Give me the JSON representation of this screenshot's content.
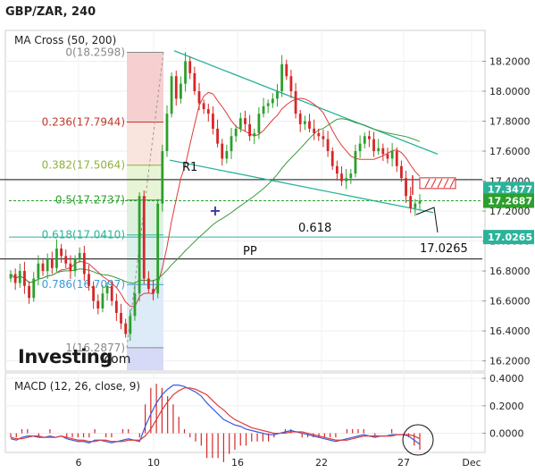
{
  "header": {
    "title": "GBP/ZAR, 240"
  },
  "indicators": {
    "ma_label": "MA Cross (50, 200)",
    "macd_label": "MACD (12, 26, close, 9)"
  },
  "watermark": {
    "brand": "Investing",
    "suffix": ".com"
  },
  "annotations": {
    "r1": "R1",
    "pp": "PP",
    "fib_note": "0.618",
    "target": "17.0265"
  },
  "colors": {
    "up_candle": "#2ca02c",
    "down_candle": "#d62728",
    "trendline": "#2bb39a",
    "ma_fast": "#e03a3a",
    "ma_slow": "#3a9a3a",
    "macd": "#3a5bd9",
    "signal": "#e03a3a",
    "fib_cursor": "#3a3aa0"
  },
  "chart_data": [
    {
      "type": "candlestick",
      "title": "GBP/ZAR, 240",
      "x_ticks": [
        "6",
        "10",
        "16",
        "22",
        "27",
        "Dec"
      ],
      "y_ticks": [
        "18.2000",
        "18.0000",
        "17.8000",
        "17.6000",
        "17.4000",
        "17.2000",
        "17.0000",
        "16.8000",
        "16.6000",
        "16.4000",
        "16.2000"
      ],
      "ylim": [
        16.15,
        18.37
      ],
      "price_labels": [
        {
          "text": "17.3477",
          "value": 17.3477,
          "color": "#2bb39a"
        },
        {
          "text": "17.2687",
          "value": 17.2687,
          "color": "#2ca02c"
        },
        {
          "text": "17.0265",
          "value": 17.0265,
          "color": "#2bb39a"
        }
      ],
      "fibonacci": [
        {
          "label": "0(18.2598)",
          "value": 18.2598,
          "color": "#888888"
        },
        {
          "label": "0.236(17.7944)",
          "value": 17.7944,
          "color": "#c0392b"
        },
        {
          "label": "0.382(17.5064)",
          "value": 17.5064,
          "color": "#8fb23a"
        },
        {
          "label": "0.5(17.2737)",
          "value": 17.2737,
          "color": "#2ca02c"
        },
        {
          "label": "0.618(17.0410)",
          "value": 17.041,
          "color": "#2bb39a"
        },
        {
          "label": "0.786(16.7097)",
          "value": 16.7097,
          "color": "#3a9ad9"
        },
        {
          "label": "1(16.2877)",
          "value": 16.2877,
          "color": "#888888"
        }
      ],
      "horizontal_levels": {
        "r1": 17.41,
        "pp": 16.88,
        "level_17_0265": 17.0265
      },
      "close_series": [
        16.78,
        16.72,
        16.8,
        16.7,
        16.62,
        16.75,
        16.85,
        16.8,
        16.88,
        16.82,
        16.95,
        16.9,
        16.85,
        16.8,
        16.88,
        16.92,
        16.78,
        16.7,
        16.6,
        16.55,
        16.65,
        16.7,
        16.6,
        16.52,
        16.45,
        16.38,
        16.5,
        16.65,
        17.3,
        16.75,
        16.68,
        16.65,
        17.25,
        17.6,
        17.85,
        18.1,
        17.95,
        18.05,
        18.2,
        18.12,
        18.0,
        17.92,
        17.88,
        17.85,
        17.75,
        17.65,
        17.55,
        17.6,
        17.7,
        17.75,
        17.82,
        17.78,
        17.7,
        17.72,
        17.85,
        17.9,
        17.92,
        17.95,
        18.0,
        18.18,
        18.1,
        18.0,
        17.85,
        17.78,
        17.8,
        17.75,
        17.72,
        17.7,
        17.68,
        17.6,
        17.5,
        17.45,
        17.4,
        17.42,
        17.45,
        17.6,
        17.65,
        17.7,
        17.68,
        17.6,
        17.62,
        17.58,
        17.55,
        17.6,
        17.5,
        17.42,
        17.3,
        17.22,
        17.25,
        17.27
      ],
      "macd": {
        "yticks": [
          "0.4000",
          "0.2000",
          "0.0000"
        ],
        "ylim": [
          -0.12,
          0.42
        ],
        "macd_series": [
          -0.04,
          -0.05,
          -0.03,
          -0.02,
          -0.02,
          -0.03,
          -0.03,
          -0.02,
          -0.03,
          -0.02,
          -0.04,
          -0.05,
          -0.06,
          -0.06,
          -0.07,
          -0.05,
          -0.05,
          -0.06,
          -0.07,
          -0.06,
          -0.05,
          -0.04,
          -0.05,
          -0.06,
          0.05,
          0.14,
          0.22,
          0.28,
          0.32,
          0.35,
          0.35,
          0.34,
          0.32,
          0.3,
          0.27,
          0.22,
          0.18,
          0.14,
          0.1,
          0.08,
          0.06,
          0.05,
          0.03,
          0.02,
          0.01,
          0.0,
          -0.01,
          -0.01,
          0.0,
          0.01,
          0.02,
          0.01,
          0.0,
          -0.01,
          -0.02,
          -0.03,
          -0.04,
          -0.05,
          -0.06,
          -0.05,
          -0.04,
          -0.03,
          -0.02,
          -0.01,
          -0.02,
          -0.03,
          -0.02,
          -0.02,
          -0.01,
          -0.01,
          -0.01,
          -0.02,
          -0.05,
          -0.08
        ],
        "signal_series": [
          -0.03,
          -0.04,
          -0.04,
          -0.03,
          -0.02,
          -0.02,
          -0.03,
          -0.03,
          -0.03,
          -0.02,
          -0.03,
          -0.04,
          -0.05,
          -0.05,
          -0.06,
          -0.06,
          -0.05,
          -0.05,
          -0.06,
          -0.06,
          -0.06,
          -0.05,
          -0.05,
          -0.05,
          -0.02,
          0.03,
          0.1,
          0.17,
          0.23,
          0.28,
          0.31,
          0.33,
          0.33,
          0.32,
          0.3,
          0.28,
          0.24,
          0.2,
          0.17,
          0.13,
          0.1,
          0.08,
          0.06,
          0.04,
          0.03,
          0.02,
          0.01,
          0.0,
          0.0,
          0.0,
          0.01,
          0.01,
          0.01,
          0.0,
          -0.01,
          -0.02,
          -0.03,
          -0.04,
          -0.05,
          -0.05,
          -0.05,
          -0.04,
          -0.03,
          -0.02,
          -0.02,
          -0.02,
          -0.02,
          -0.02,
          -0.02,
          -0.01,
          -0.01,
          -0.01,
          -0.02,
          -0.04
        ]
      }
    }
  ]
}
